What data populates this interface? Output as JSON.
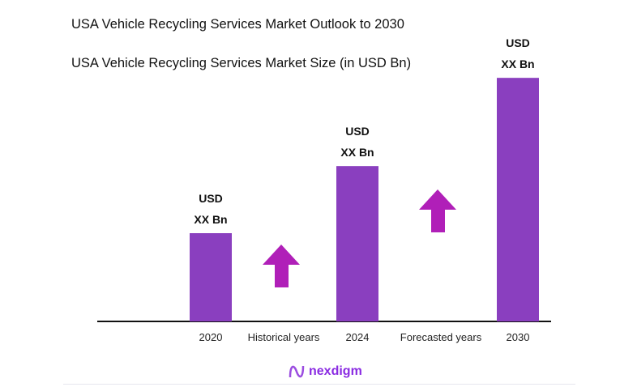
{
  "title": "USA Vehicle Recycling Services Market Outlook to 2030",
  "subtitle": "USA Vehicle Recycling Services Market Size (in USD Bn)",
  "logo": "nexdigm",
  "colors": {
    "bar": "#8a3fbf",
    "arrow": "#b01fb8",
    "axis": "#111111"
  },
  "chart_data": {
    "type": "bar",
    "categories": [
      "2020",
      "2024",
      "2030"
    ],
    "relative_values": [
      1,
      1.76,
      2.76
    ],
    "data_labels": [
      [
        "USD",
        "XX Bn"
      ],
      [
        "USD",
        "XX Bn"
      ],
      [
        "USD",
        "XX Bn"
      ]
    ],
    "period_labels": [
      "Historical years",
      "Forecasted years"
    ],
    "annotations": [
      "up-arrow",
      "up-arrow"
    ],
    "grid": false
  }
}
